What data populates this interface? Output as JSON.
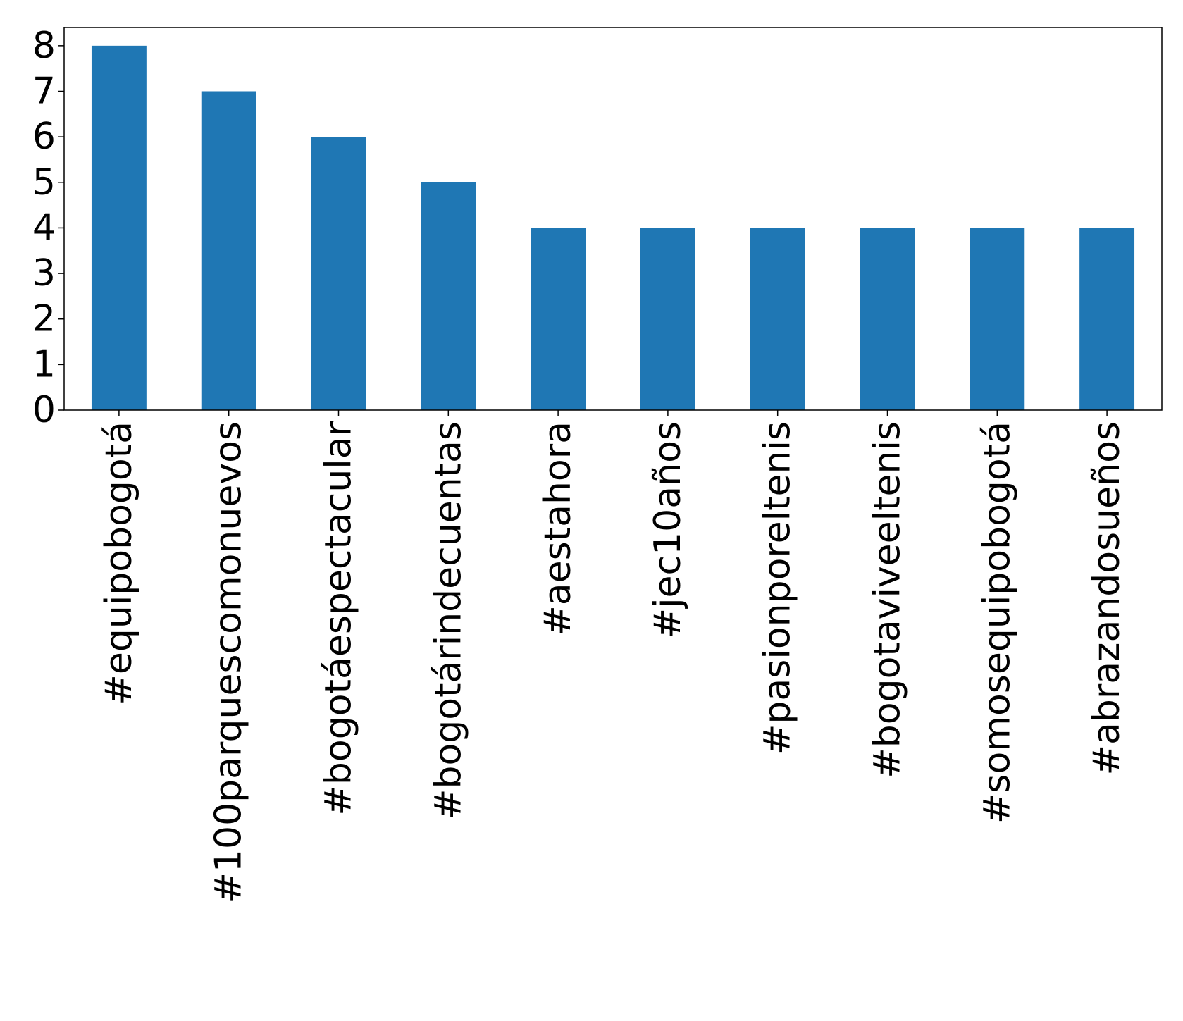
{
  "chart_data": {
    "type": "bar",
    "title": "",
    "xlabel": "",
    "ylabel": "",
    "categories": [
      "#equipobogotá",
      "#100parquescomonuevos",
      "#bogotáespectacular",
      "#bogotárindecuentas",
      "#aestahora",
      "#jec10años",
      "#pasionporeltenis",
      "#bogotaviveeltenis",
      "#somosequipobogotá",
      "#abrazandosueños"
    ],
    "values": [
      8,
      7,
      6,
      5,
      4,
      4,
      4,
      4,
      4,
      4
    ],
    "ylim": [
      0,
      8.4
    ],
    "yticks": [
      0,
      1,
      2,
      3,
      4,
      5,
      6,
      7,
      8
    ],
    "grid": false,
    "legend": "none",
    "colors": {
      "bar": "#1f77b4",
      "axes": "#000000"
    }
  }
}
